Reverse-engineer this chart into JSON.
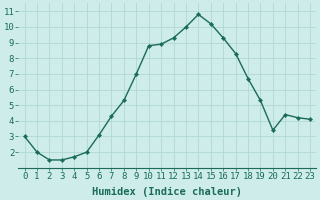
{
  "x": [
    0,
    1,
    2,
    3,
    4,
    5,
    6,
    7,
    8,
    9,
    10,
    11,
    12,
    13,
    14,
    15,
    16,
    17,
    18,
    19,
    20,
    21,
    22,
    23
  ],
  "y": [
    3.0,
    2.0,
    1.5,
    1.5,
    1.7,
    2.0,
    3.1,
    4.3,
    5.3,
    7.0,
    8.8,
    8.9,
    9.3,
    10.0,
    10.8,
    10.2,
    9.3,
    8.3,
    6.7,
    5.3,
    3.4,
    4.4,
    4.2,
    4.1
  ],
  "line_color": "#1a6b5a",
  "marker": "D",
  "marker_size": 2.2,
  "bg_color": "#ceecea",
  "grid_color": "#b0d8d4",
  "xlabel": "Humidex (Indice chaleur)",
  "xlim": [
    -0.5,
    23.5
  ],
  "ylim": [
    1.0,
    11.5
  ],
  "yticks": [
    2,
    3,
    4,
    5,
    6,
    7,
    8,
    9,
    10,
    11
  ],
  "xticks": [
    0,
    1,
    2,
    3,
    4,
    5,
    6,
    7,
    8,
    9,
    10,
    11,
    12,
    13,
    14,
    15,
    16,
    17,
    18,
    19,
    20,
    21,
    22,
    23
  ],
  "axis_color": "#1a6b5a",
  "font_size": 6.5,
  "xlabel_fontsize": 7.5,
  "linewidth": 1.0
}
